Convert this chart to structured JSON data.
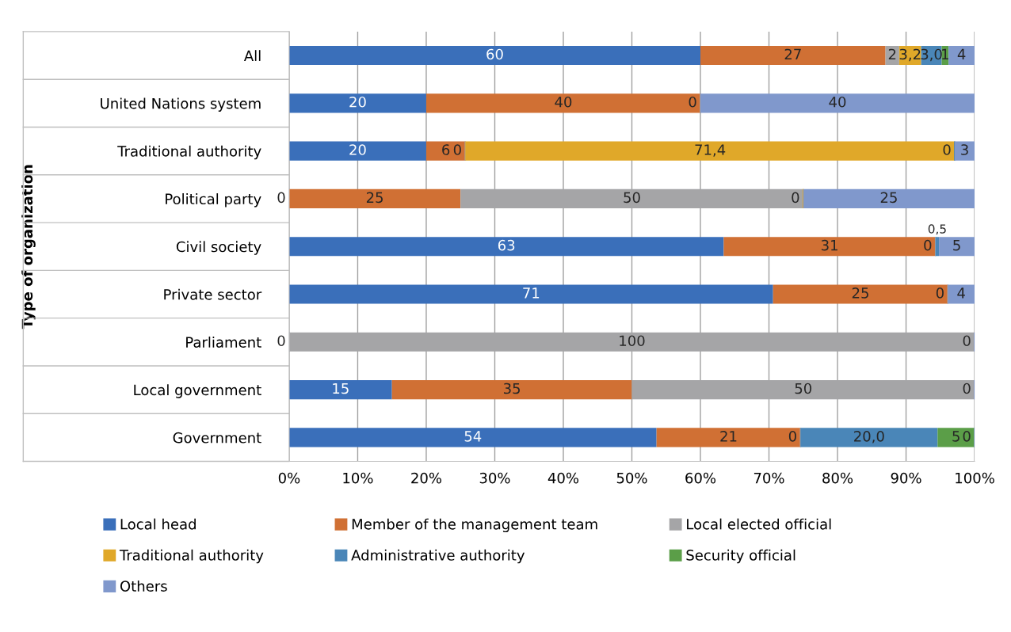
{
  "chart_data": {
    "type": "bar",
    "orientation": "horizontal",
    "stacked": true,
    "ylabel": "Type of organization",
    "categories": [
      "All",
      "United Nations system",
      "Traditional authority",
      "Political party",
      "Civil society",
      "Private sector",
      "Parliament",
      "Local government",
      "Government"
    ],
    "series": [
      {
        "name": "Local head",
        "color": "#3a6fba",
        "values": [
          60,
          20,
          20,
          0,
          63.4,
          70.6,
          0,
          15,
          53.6
        ],
        "value_labels": [
          "60",
          "20",
          "20",
          "0",
          "63",
          "71",
          "0",
          "15",
          "54"
        ]
      },
      {
        "name": "Member of the management team",
        "color": "#d07034",
        "values": [
          27,
          40,
          5.7,
          25,
          30.9,
          25.5,
          null,
          35,
          21
        ],
        "value_labels": [
          "27",
          "40",
          "6",
          "25",
          "31",
          "25",
          null,
          "35",
          "21"
        ]
      },
      {
        "name": "Local elected official",
        "color": "#a5a5a7",
        "values": [
          2,
          0,
          0,
          50,
          0,
          0,
          100,
          50,
          0
        ],
        "value_labels": [
          "2",
          "0",
          "0",
          "50",
          "0",
          "0",
          "100",
          "50",
          "0"
        ]
      },
      {
        "name": "Traditional authority",
        "color": "#e0a829",
        "values": [
          3.2,
          null,
          71.4,
          0,
          null,
          null,
          null,
          null,
          null
        ],
        "value_labels": [
          "3,2",
          null,
          "71,4",
          "0",
          null,
          null,
          null,
          null,
          null
        ]
      },
      {
        "name": "Administrative authority",
        "color": "#4a86b8",
        "values": [
          3,
          null,
          0,
          null,
          0.5,
          null,
          null,
          null,
          20
        ],
        "value_labels": [
          "3,0",
          null,
          "0",
          null,
          "0,5",
          null,
          null,
          null,
          "20,0"
        ]
      },
      {
        "name": "Security official",
        "color": "#5b9e48",
        "values": [
          1,
          null,
          null,
          null,
          null,
          null,
          null,
          null,
          5.4
        ],
        "value_labels": [
          "1",
          null,
          null,
          null,
          null,
          null,
          null,
          null,
          "5"
        ]
      },
      {
        "name": "Others",
        "color": "#8098cc",
        "values": [
          3.8,
          40,
          2.9,
          25,
          5.2,
          3.9,
          0,
          0,
          0
        ],
        "value_labels": [
          "4",
          "40",
          "3",
          "25",
          "5",
          "4",
          "0",
          "0",
          "0"
        ]
      }
    ],
    "xlim": [
      0,
      100
    ],
    "xticks": [
      {
        "value": 0,
        "label": "0%"
      },
      {
        "value": 10,
        "label": "10%"
      },
      {
        "value": 20,
        "label": "20%"
      },
      {
        "value": 30,
        "label": "30%"
      },
      {
        "value": 40,
        "label": "40%"
      },
      {
        "value": 50,
        "label": "50%"
      },
      {
        "value": 60,
        "label": "60%"
      },
      {
        "value": 70,
        "label": "70%"
      },
      {
        "value": 80,
        "label": "80%"
      },
      {
        "value": 90,
        "label": "90%"
      },
      {
        "value": 100,
        "label": "100%"
      }
    ],
    "grid": "x",
    "legend": "bottom"
  }
}
